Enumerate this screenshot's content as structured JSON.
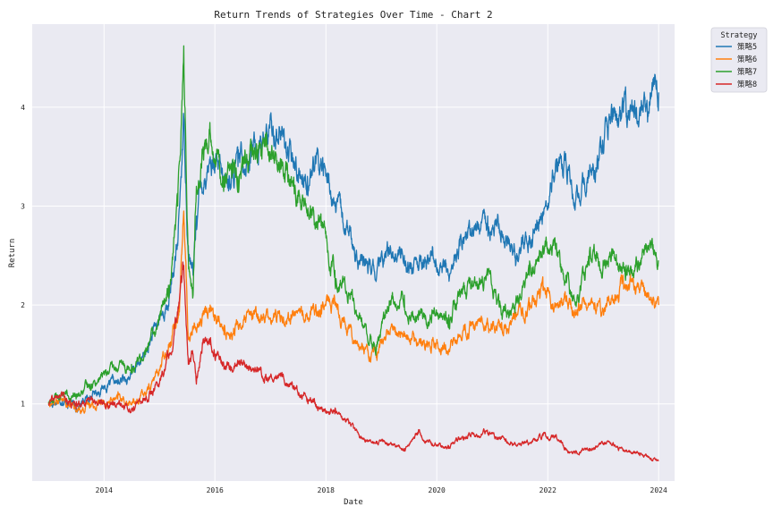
{
  "chart_data": {
    "type": "line",
    "title": "Return Trends of Strategies Over Time - Chart 2",
    "xlabel": "Date",
    "ylabel": "Return",
    "xlim": [
      "2012-09-15",
      "2024-04-15"
    ],
    "ylim": [
      0.22,
      4.84
    ],
    "x_ticks": [
      "2014",
      "2016",
      "2018",
      "2020",
      "2022",
      "2024"
    ],
    "y_ticks": [
      1,
      2,
      3,
      4
    ],
    "grid": true,
    "legend": {
      "title": "Strategy",
      "position": "outside-top-right"
    },
    "series": [
      {
        "name": "策略5",
        "color": "#1f77b4",
        "x": [
          "2013-01-01",
          "2013-04-01",
          "2013-07-01",
          "2013-10-01",
          "2014-01-01",
          "2014-04-01",
          "2014-07-01",
          "2014-10-01",
          "2015-01-01",
          "2015-03-01",
          "2015-05-01",
          "2015-06-10",
          "2015-07-10",
          "2015-08-10",
          "2015-09-01",
          "2015-10-01",
          "2015-12-01",
          "2016-03-01",
          "2016-06-01",
          "2016-09-01",
          "2016-12-01",
          "2017-03-01",
          "2017-06-01",
          "2017-09-01",
          "2017-12-01",
          "2018-03-01",
          "2018-06-01",
          "2018-09-01",
          "2018-12-01",
          "2019-03-01",
          "2019-06-01",
          "2019-09-01",
          "2019-12-01",
          "2020-03-20",
          "2020-06-01",
          "2020-09-01",
          "2020-12-01",
          "2021-03-01",
          "2021-06-01",
          "2021-09-01",
          "2021-12-01",
          "2022-03-01",
          "2022-05-01",
          "2022-07-01",
          "2022-10-01",
          "2023-01-01",
          "2023-03-01",
          "2023-06-01",
          "2023-09-01",
          "2023-10-20",
          "2023-12-01",
          "2024-01-01"
        ],
        "values": [
          1.0,
          1.05,
          0.96,
          1.08,
          1.18,
          1.2,
          1.3,
          1.5,
          1.85,
          2.0,
          2.6,
          3.9,
          2.6,
          2.3,
          2.9,
          3.2,
          3.5,
          3.2,
          3.4,
          3.6,
          3.7,
          3.8,
          3.4,
          3.3,
          3.45,
          3.0,
          2.7,
          2.4,
          2.3,
          2.6,
          2.5,
          2.35,
          2.5,
          2.3,
          2.6,
          2.75,
          2.9,
          2.75,
          2.5,
          2.7,
          2.9,
          3.35,
          3.45,
          3.0,
          3.3,
          3.55,
          3.85,
          3.9,
          4.0,
          3.85,
          4.3,
          4.15
        ]
      },
      {
        "name": "策略6",
        "color": "#ff7f0e",
        "x": [
          "2013-01-01",
          "2013-04-01",
          "2013-07-01",
          "2013-10-01",
          "2014-01-01",
          "2014-04-01",
          "2014-07-01",
          "2014-10-01",
          "2015-01-01",
          "2015-03-01",
          "2015-05-10",
          "2015-06-10",
          "2015-07-10",
          "2015-08-10",
          "2015-10-01",
          "2015-12-01",
          "2016-03-01",
          "2016-06-01",
          "2016-09-01",
          "2016-12-01",
          "2017-06-01",
          "2017-12-01",
          "2018-03-01",
          "2018-06-01",
          "2018-09-01",
          "2018-12-01",
          "2019-03-01",
          "2019-06-01",
          "2019-09-01",
          "2019-12-01",
          "2020-03-20",
          "2020-06-01",
          "2020-09-01",
          "2020-12-01",
          "2021-03-01",
          "2021-06-01",
          "2021-09-01",
          "2021-12-01",
          "2022-03-01",
          "2022-05-01",
          "2022-07-01",
          "2022-10-01",
          "2023-01-01",
          "2023-03-01",
          "2023-06-01",
          "2023-09-01",
          "2023-12-01",
          "2024-01-01"
        ],
        "values": [
          1.0,
          1.03,
          0.92,
          1.0,
          1.02,
          1.05,
          1.0,
          1.1,
          1.35,
          1.6,
          2.0,
          2.95,
          1.65,
          1.75,
          1.85,
          2.0,
          1.7,
          1.8,
          1.85,
          1.9,
          1.9,
          2.0,
          2.0,
          1.8,
          1.55,
          1.5,
          1.75,
          1.7,
          1.6,
          1.65,
          1.55,
          1.7,
          1.8,
          1.8,
          1.75,
          1.85,
          1.95,
          2.15,
          2.0,
          2.05,
          1.95,
          2.0,
          1.95,
          2.1,
          2.2,
          2.15,
          2.05,
          2.0
        ]
      },
      {
        "name": "策略7",
        "color": "#2ca02c",
        "x": [
          "2013-01-01",
          "2013-04-01",
          "2013-07-01",
          "2013-10-01",
          "2014-01-01",
          "2014-04-01",
          "2014-07-01",
          "2014-10-01",
          "2015-01-01",
          "2015-03-01",
          "2015-05-01",
          "2015-06-10",
          "2015-07-10",
          "2015-08-10",
          "2015-09-01",
          "2015-10-15",
          "2015-12-01",
          "2016-03-01",
          "2016-06-01",
          "2016-09-01",
          "2016-12-01",
          "2017-03-01",
          "2017-06-01",
          "2017-09-01",
          "2017-12-01",
          "2018-03-01",
          "2018-06-01",
          "2018-09-01",
          "2018-12-01",
          "2019-03-01",
          "2019-06-01",
          "2019-09-01",
          "2019-12-01",
          "2020-03-20",
          "2020-06-01",
          "2020-09-01",
          "2020-12-01",
          "2021-03-01",
          "2021-06-01",
          "2021-09-01",
          "2021-12-01",
          "2022-03-01",
          "2022-05-01",
          "2022-07-01",
          "2022-10-01",
          "2023-01-01",
          "2023-03-01",
          "2023-06-01",
          "2023-09-01",
          "2023-12-01",
          "2024-01-01"
        ],
        "values": [
          1.02,
          1.1,
          1.05,
          1.2,
          1.3,
          1.35,
          1.4,
          1.5,
          1.85,
          2.2,
          3.0,
          4.62,
          2.5,
          2.1,
          3.2,
          3.6,
          3.75,
          3.3,
          3.3,
          3.5,
          3.6,
          3.4,
          3.2,
          2.9,
          2.8,
          2.35,
          2.1,
          1.8,
          1.6,
          2.0,
          2.1,
          1.85,
          1.95,
          1.9,
          2.1,
          2.2,
          2.3,
          1.9,
          2.0,
          2.3,
          2.6,
          2.5,
          2.3,
          2.0,
          2.4,
          2.45,
          2.5,
          2.4,
          2.4,
          2.55,
          2.45
        ]
      },
      {
        "name": "策略8",
        "color": "#d62728",
        "x": [
          "2013-01-01",
          "2013-04-01",
          "2013-07-01",
          "2013-10-01",
          "2014-01-01",
          "2014-04-01",
          "2014-07-01",
          "2014-10-01",
          "2015-01-01",
          "2015-03-01",
          "2015-05-01",
          "2015-06-10",
          "2015-07-10",
          "2015-08-10",
          "2015-09-01",
          "2015-10-15",
          "2015-12-01",
          "2016-03-01",
          "2016-06-01",
          "2016-09-01",
          "2016-12-01",
          "2017-03-01",
          "2017-06-01",
          "2017-09-01",
          "2017-12-01",
          "2018-03-01",
          "2018-06-01",
          "2018-09-01",
          "2018-12-01",
          "2019-03-01",
          "2019-06-01",
          "2019-09-01",
          "2019-12-01",
          "2020-03-20",
          "2020-06-01",
          "2020-09-01",
          "2020-12-01",
          "2021-03-01",
          "2021-06-01",
          "2021-09-01",
          "2021-12-01",
          "2022-03-01",
          "2022-05-01",
          "2022-07-01",
          "2022-10-01",
          "2023-01-01",
          "2023-03-01",
          "2023-06-01",
          "2023-09-01",
          "2023-12-01",
          "2024-01-01"
        ],
        "values": [
          1.0,
          1.08,
          0.95,
          1.05,
          1.0,
          1.0,
          0.95,
          1.05,
          1.2,
          1.5,
          1.9,
          2.4,
          1.4,
          1.5,
          1.2,
          1.65,
          1.6,
          1.35,
          1.4,
          1.35,
          1.3,
          1.3,
          1.15,
          1.05,
          0.95,
          0.9,
          0.8,
          0.65,
          0.6,
          0.6,
          0.55,
          0.7,
          0.6,
          0.55,
          0.65,
          0.7,
          0.7,
          0.65,
          0.6,
          0.6,
          0.68,
          0.65,
          0.55,
          0.5,
          0.55,
          0.6,
          0.58,
          0.52,
          0.5,
          0.45,
          0.43
        ]
      }
    ]
  }
}
